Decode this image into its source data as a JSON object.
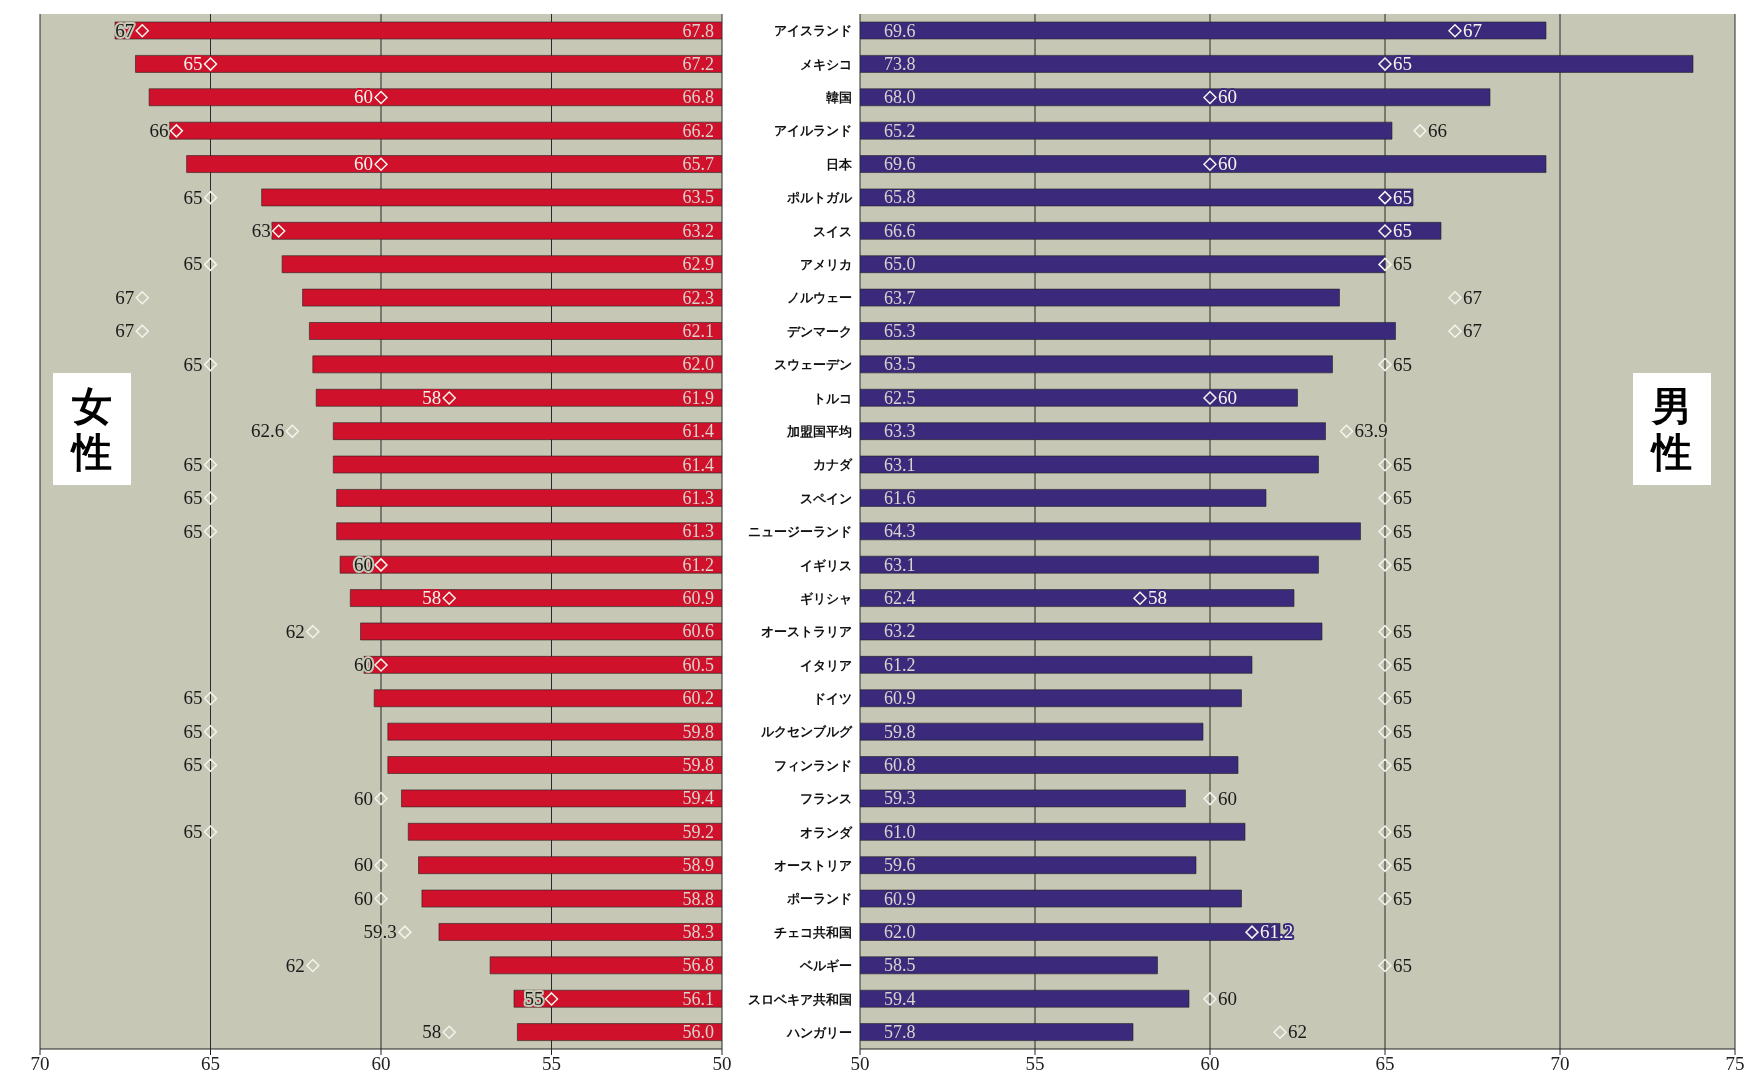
{
  "chart_data": [
    {
      "type": "bar",
      "orientation": "horizontal",
      "categories": [
        null,
        null,
        null,
        null,
        null,
        null,
        null,
        null,
        null,
        null,
        null,
        null,
        null,
        null,
        null,
        null,
        null,
        null,
        null,
        null,
        null,
        null,
        null,
        null,
        null,
        null,
        null,
        null,
        null,
        null,
        null
      ],
      "xlim": [
        70,
        50
      ],
      "xticks": [
        70,
        65,
        60,
        55,
        50
      ],
      "grid": "x",
      "tick_labels": "x",
      "marker": "diamond",
      "annotations": [
        "女性"
      ],
      "series": [
        {
          "type": "bar",
          "color": "#d0112b",
          "values": [
            67.8,
            67.2,
            66.8,
            66.2,
            65.7,
            63.5,
            63.2,
            62.9,
            62.3,
            62.1,
            62.0,
            61.9,
            61.4,
            61.4,
            61.3,
            61.3,
            61.2,
            60.9,
            60.6,
            60.5,
            60.2,
            59.8,
            59.8,
            59.4,
            59.2,
            58.9,
            58.8,
            58.3,
            56.8,
            56.1,
            56.0
          ],
          "value_labels": [
            "67.8",
            "67.2",
            "66.8",
            "66.2",
            "65.7",
            "63.5",
            "63.2",
            "62.9",
            "62.3",
            "62.1",
            "62.0",
            "61.9",
            "61.4",
            "61.4",
            "61.3",
            "61.3",
            "61.2",
            "60.9",
            "60.6",
            "60.5",
            "60.2",
            "59.8",
            "59.8",
            "59.4",
            "59.2",
            "58.9",
            "58.8",
            "58.3",
            "56.8",
            "56.1",
            "56.0"
          ]
        },
        {
          "type": "scatter",
          "color": "#f4f4ec",
          "values": [
            67,
            65,
            60,
            66,
            60,
            65,
            63,
            65,
            67,
            67,
            65,
            58,
            62.6,
            65,
            65,
            65,
            60,
            58,
            62,
            60,
            65,
            65,
            65,
            60,
            65,
            60,
            60,
            59.3,
            62,
            55,
            58
          ],
          "value_labels": [
            "67",
            "65",
            "60",
            "66",
            "60",
            "65",
            "63",
            "65",
            "67",
            "67",
            "65",
            "58",
            "62.6",
            "65",
            "65",
            "65",
            "60",
            "58",
            "62",
            "60",
            "65",
            "65",
            "65",
            "60",
            "65",
            "60",
            "60",
            "59.3",
            "62",
            "55",
            "58"
          ]
        }
      ]
    },
    {
      "type": "bar",
      "orientation": "horizontal",
      "categories": [
        "アイスランド",
        "メキシコ",
        "韓国",
        "アイルランド",
        "日本",
        "ポルトガル",
        "スイス",
        "アメリカ",
        "ノルウェー",
        "デンマーク",
        "スウェーデン",
        "トルコ",
        "加盟国平均",
        "カナダ",
        "スペイン",
        "ニュージーランド",
        "イギリス",
        "ギリシャ",
        "オーストラリア",
        "イタリア",
        "ドイツ",
        "ルクセンブルグ",
        "フィンランド",
        "フランス",
        "オランダ",
        "オーストリア",
        "ポーランド",
        "チェコ共和国",
        "ベルギー",
        "スロベキア共和国",
        "ハンガリー"
      ],
      "xlim": [
        50,
        75
      ],
      "xticks": [
        50,
        55,
        60,
        65,
        70,
        75
      ],
      "grid": "x",
      "marker": "diamond",
      "annotations": [
        "男性"
      ],
      "series": [
        {
          "type": "bar",
          "color": "#3b2a7c",
          "values": [
            69.6,
            73.8,
            68.0,
            65.2,
            69.6,
            65.8,
            66.6,
            65.0,
            63.7,
            65.3,
            63.5,
            62.5,
            63.3,
            63.1,
            61.6,
            64.3,
            63.1,
            62.4,
            63.2,
            61.2,
            60.9,
            59.8,
            60.8,
            59.3,
            61.0,
            59.6,
            60.9,
            62.0,
            58.5,
            59.4,
            57.8
          ],
          "value_labels": [
            "69.6",
            "73.8",
            "68.0",
            "65.2",
            "69.6",
            "65.8",
            "66.6",
            "65.0",
            "63.7",
            "65.3",
            "63.5",
            "62.5",
            "63.3",
            "63.1",
            "61.6",
            "64.3",
            "63.1",
            "62.4",
            "63.2",
            "61.2",
            "60.9",
            "59.8",
            "60.8",
            "59.3",
            "61.0",
            "59.6",
            "60.9",
            "62.0",
            "58.5",
            "59.4",
            "57.8"
          ]
        },
        {
          "type": "scatter",
          "color": "#f4f4ec",
          "values": [
            67,
            65,
            60,
            66,
            60,
            65,
            65,
            65,
            67,
            67,
            65,
            60,
            63.9,
            65,
            65,
            65,
            65,
            58,
            65,
            65,
            65,
            65,
            65,
            60,
            65,
            65,
            65,
            61.2,
            65,
            60,
            62
          ],
          "value_labels": [
            "67",
            "65",
            "60",
            "66",
            "60",
            "65",
            "65",
            "65",
            "67",
            "67",
            "65",
            "60",
            "63.9",
            "65",
            "65",
            "65",
            "65",
            "58",
            "65",
            "65",
            "65",
            "65",
            "65",
            "60",
            "65",
            "65",
            "65",
            "61.2",
            "65",
            "60",
            "62"
          ]
        }
      ]
    }
  ]
}
